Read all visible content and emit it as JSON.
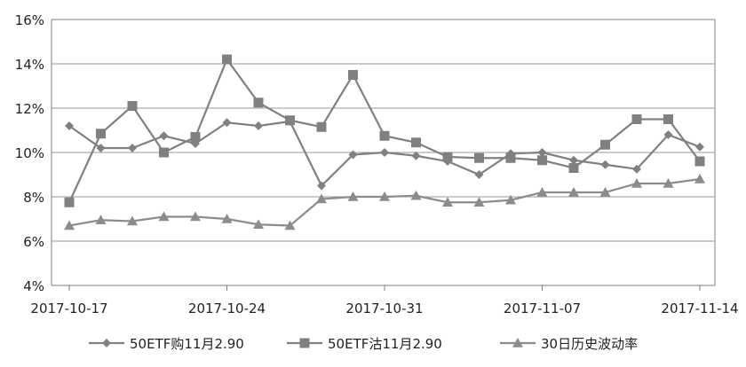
{
  "chart_data": {
    "type": "line",
    "x": [
      "2017-10-17",
      "2017-10-18",
      "2017-10-19",
      "2017-10-20",
      "2017-10-23",
      "2017-10-24",
      "2017-10-25",
      "2017-10-26",
      "2017-10-27",
      "2017-10-30",
      "2017-10-31",
      "2017-11-01",
      "2017-11-02",
      "2017-11-03",
      "2017-11-06",
      "2017-11-07",
      "2017-11-08",
      "2017-11-09",
      "2017-11-10",
      "2017-11-13",
      "2017-11-14"
    ],
    "x_ticks": [
      "2017-10-17",
      "2017-10-24",
      "2017-10-31",
      "2017-11-07",
      "2017-11-14"
    ],
    "x_tick_index": [
      0,
      5,
      10,
      15,
      20
    ],
    "y_ticks": [
      "4%",
      "6%",
      "8%",
      "10%",
      "12%",
      "14%",
      "16%"
    ],
    "ylim": [
      4,
      16
    ],
    "ystep": 2,
    "grid": "horizontal",
    "legend_position": "bottom",
    "series": [
      {
        "name": "50ETF购11月2.90",
        "marker": "diamond",
        "color": "#808080",
        "values": [
          11.2,
          10.2,
          10.2,
          10.75,
          10.4,
          11.35,
          11.2,
          11.4,
          8.5,
          9.9,
          10.0,
          9.85,
          9.6,
          9.0,
          9.95,
          10.0,
          9.65,
          9.45,
          9.25,
          10.8,
          10.25
        ]
      },
      {
        "name": "50ETF沽11月2.90",
        "marker": "square",
        "color": "#808080",
        "values": [
          7.75,
          10.85,
          12.1,
          10.0,
          10.7,
          14.2,
          12.25,
          11.45,
          11.15,
          13.5,
          10.75,
          10.45,
          9.8,
          9.75,
          9.75,
          9.65,
          9.3,
          10.35,
          11.5,
          11.5,
          9.6
        ]
      },
      {
        "name": "30日历史波动率",
        "marker": "triangle",
        "color": "#8c8c8c",
        "values": [
          6.7,
          6.95,
          6.9,
          7.1,
          7.1,
          7.0,
          6.75,
          6.7,
          7.9,
          8.0,
          8.0,
          8.05,
          7.75,
          7.75,
          7.85,
          8.2,
          8.2,
          8.2,
          8.6,
          8.6,
          8.8
        ]
      }
    ]
  }
}
